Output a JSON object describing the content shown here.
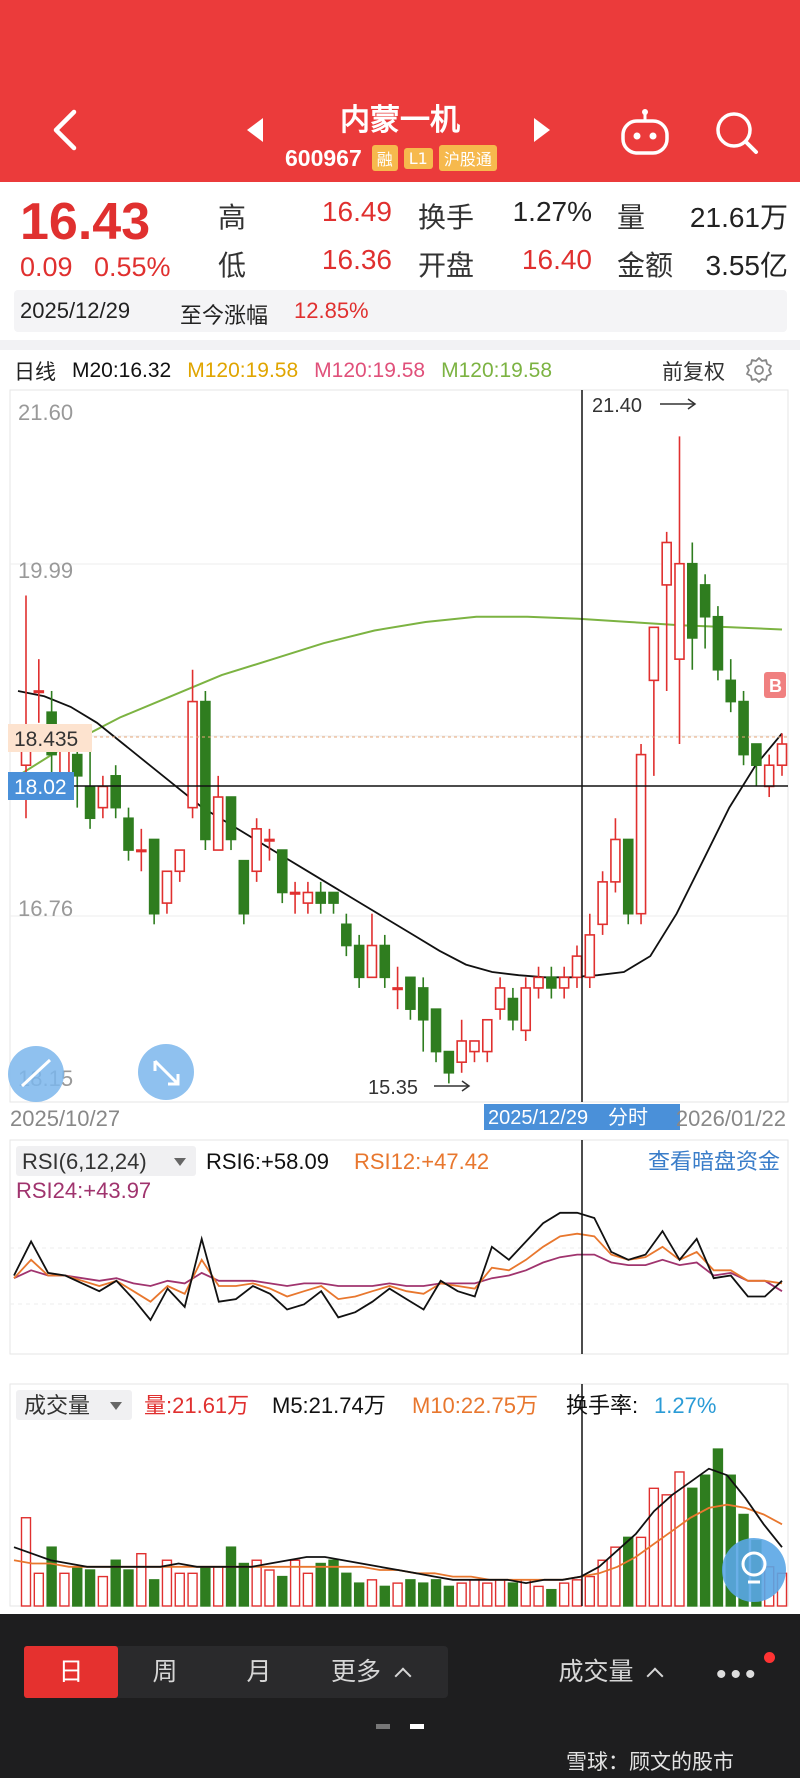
{
  "header": {
    "stock_name": "内蒙一机",
    "stock_code": "600967",
    "tags": [
      "融",
      "L1",
      "沪股通"
    ]
  },
  "quote": {
    "price": "16.43",
    "change": "0.09",
    "change_pct": "0.55%",
    "high_label": "高",
    "high": "16.49",
    "low_label": "低",
    "low": "16.36",
    "turnover_label": "换手",
    "turnover": "1.27%",
    "open_label": "开盘",
    "open": "16.40",
    "volume_label": "量",
    "volume": "21.61万",
    "amount_label": "金额",
    "amount": "3.55亿",
    "date": "2025/12/29",
    "since_label": "至今涨幅",
    "since_value": "12.85%"
  },
  "chart_header": {
    "period": "日线",
    "ma20": "M20:16.32",
    "ma120a": "M120:19.58",
    "ma120b": "M120:19.58",
    "ma120c": "M120:19.58",
    "adjust": "前复权"
  },
  "colors": {
    "up": "#e0302f",
    "down": "#2f7d1f",
    "ma20": "#111111",
    "ma120": "#7cb342",
    "ma120a_text": "#e0a500",
    "ma120b_text": "#e0507a",
    "ma120c_text": "#7cb342",
    "rsi6": "#111111",
    "rsi12": "#e8772e",
    "rsi24": "#a0346e",
    "vol_m5": "#111111",
    "vol_m10": "#e8772e"
  },
  "price_chart": {
    "y_labels": [
      "21.60",
      "19.99",
      "16.76",
      "18.15"
    ],
    "price_tag": "18.435",
    "cross_price_tag": "18.02",
    "high_marker": "21.40",
    "low_marker": "15.35",
    "start_date": "2025/10/27",
    "cross_date": "2025/12/29",
    "cross_date_suffix": "分时",
    "end_date": "2026/01/22",
    "b_marker": "B"
  },
  "rsi_panel": {
    "selector": "RSI(6,12,24)",
    "rsi6": "RSI6:+58.09",
    "rsi12": "RSI12:+47.42",
    "rsi24": "RSI24:+43.97",
    "link": "查看暗盘资金"
  },
  "volume_panel": {
    "selector": "成交量",
    "vol": "量:21.61万",
    "m5": "M5:21.74万",
    "m10": "M10:22.75万",
    "turnover_label": "换手率:",
    "turnover_value": "1.27%"
  },
  "bottom_bar": {
    "tab_day": "日",
    "tab_week": "周",
    "tab_month": "月",
    "tab_more": "更多",
    "indicator": "成交量",
    "more_dots": "•••",
    "watermark": "雪球：顾文的股市"
  },
  "chart_data": {
    "type": "candlestick",
    "x_start": "2025/10/27",
    "x_end": "2026/01/22",
    "ylim": [
      15.2,
      21.8
    ],
    "candles": [
      [
        18.3,
        19.9,
        18.5,
        17.8
      ],
      [
        19.0,
        19.3,
        19.0,
        18.7
      ],
      [
        18.8,
        19.0,
        18.4,
        18.2
      ],
      [
        18.2,
        18.6,
        18.5,
        18.1
      ],
      [
        18.4,
        18.6,
        18.2,
        17.9
      ],
      [
        18.1,
        18.5,
        17.8,
        17.7
      ],
      [
        17.9,
        18.2,
        18.1,
        17.8
      ],
      [
        18.2,
        18.3,
        17.9,
        17.8
      ],
      [
        17.8,
        17.9,
        17.5,
        17.4
      ],
      [
        17.5,
        17.7,
        17.5,
        17.3
      ],
      [
        17.6,
        17.6,
        16.9,
        16.8
      ],
      [
        17.0,
        17.3,
        17.3,
        16.9
      ],
      [
        17.3,
        17.5,
        17.5,
        17.2
      ],
      [
        17.9,
        19.2,
        18.9,
        17.8
      ],
      [
        18.9,
        19.0,
        17.6,
        17.5
      ],
      [
        17.5,
        18.2,
        18.0,
        17.5
      ],
      [
        18.0,
        18.0,
        17.6,
        17.5
      ],
      [
        17.4,
        17.4,
        16.9,
        16.8
      ],
      [
        17.3,
        17.8,
        17.7,
        17.2
      ],
      [
        17.6,
        17.7,
        17.6,
        17.4
      ],
      [
        17.5,
        17.5,
        17.1,
        17.0
      ],
      [
        17.1,
        17.2,
        17.1,
        16.9
      ],
      [
        17.0,
        17.2,
        17.1,
        16.9
      ],
      [
        17.1,
        17.2,
        17.0,
        16.9
      ],
      [
        17.1,
        17.1,
        17.0,
        16.9
      ],
      [
        16.8,
        16.9,
        16.6,
        16.5
      ],
      [
        16.6,
        16.7,
        16.3,
        16.2
      ],
      [
        16.3,
        16.9,
        16.6,
        16.3
      ],
      [
        16.6,
        16.7,
        16.3,
        16.2
      ],
      [
        16.2,
        16.4,
        16.2,
        16.0
      ],
      [
        16.3,
        16.3,
        16.0,
        15.9
      ],
      [
        16.2,
        16.3,
        15.9,
        15.6
      ],
      [
        16.0,
        16.0,
        15.6,
        15.5
      ],
      [
        15.6,
        15.6,
        15.4,
        15.3
      ],
      [
        15.5,
        15.9,
        15.7,
        15.4
      ],
      [
        15.6,
        15.7,
        15.7,
        15.5
      ],
      [
        15.6,
        15.9,
        15.9,
        15.5
      ],
      [
        16.0,
        16.3,
        16.2,
        15.9
      ],
      [
        16.1,
        16.2,
        15.9,
        15.8
      ],
      [
        15.8,
        16.3,
        16.2,
        15.7
      ],
      [
        16.2,
        16.4,
        16.3,
        16.1
      ],
      [
        16.3,
        16.4,
        16.2,
        16.1
      ],
      [
        16.2,
        16.4,
        16.3,
        16.1
      ],
      [
        16.3,
        16.6,
        16.5,
        16.2
      ],
      [
        16.3,
        16.9,
        16.7,
        16.2
      ],
      [
        16.8,
        17.3,
        17.2,
        16.7
      ],
      [
        17.2,
        17.8,
        17.6,
        17.1
      ],
      [
        17.6,
        17.6,
        16.9,
        16.8
      ],
      [
        16.9,
        18.5,
        18.4,
        16.8
      ],
      [
        19.1,
        19.6,
        19.6,
        18.2
      ],
      [
        20.0,
        20.5,
        20.4,
        19.0
      ],
      [
        19.3,
        21.4,
        20.2,
        18.5
      ],
      [
        20.2,
        20.4,
        19.5,
        19.2
      ],
      [
        20.0,
        20.1,
        19.7,
        19.4
      ],
      [
        19.7,
        19.8,
        19.2,
        19.1
      ],
      [
        19.1,
        19.3,
        18.9,
        18.8
      ],
      [
        18.9,
        19.0,
        18.4,
        18.3
      ],
      [
        18.5,
        18.5,
        18.3,
        18.1
      ],
      [
        18.1,
        18.4,
        18.3,
        18.0
      ],
      [
        18.3,
        18.6,
        18.5,
        18.2
      ]
    ],
    "ma20": [
      19.0,
      18.95,
      18.85,
      18.7,
      18.5,
      18.3,
      18.1,
      17.9,
      17.75,
      17.6,
      17.45,
      17.3,
      17.15,
      17.0,
      16.85,
      16.7,
      16.55,
      16.42,
      16.35,
      16.32,
      16.3,
      16.3,
      16.32,
      16.35,
      16.5,
      16.9,
      17.4,
      17.9,
      18.3,
      18.6
    ],
    "ma120": [
      18.2,
      18.5,
      18.75,
      18.95,
      19.15,
      19.3,
      19.45,
      19.57,
      19.65,
      19.7,
      19.7,
      19.68,
      19.65,
      19.62,
      19.6,
      19.58
    ],
    "rsi6": [
      50,
      63,
      51,
      50,
      47,
      44,
      48,
      41,
      33,
      45,
      38,
      64,
      40,
      41,
      46,
      43,
      37,
      39,
      44,
      34,
      36,
      40,
      45,
      41,
      37,
      48,
      44,
      42,
      61,
      56,
      63,
      70,
      74,
      74,
      72,
      59,
      56,
      58,
      67,
      56,
      64,
      49,
      50,
      42,
      42,
      48
    ],
    "rsi12": [
      49,
      56,
      50,
      50,
      48,
      46,
      48,
      44,
      40,
      46,
      43,
      56,
      46,
      46,
      47,
      45,
      42,
      44,
      46,
      41,
      42,
      44,
      46,
      44,
      43,
      47,
      46,
      45,
      53,
      52,
      56,
      61,
      65,
      66,
      65,
      58,
      56,
      57,
      61,
      56,
      59,
      52,
      52,
      48,
      48,
      47
    ],
    "rsi24": [
      49,
      52,
      50,
      50,
      49,
      48,
      49,
      47,
      46,
      48,
      47,
      51,
      48,
      48,
      48,
      47,
      46,
      47,
      47,
      46,
      46,
      46,
      47,
      46,
      46,
      47,
      47,
      47,
      49,
      50,
      52,
      55,
      57,
      58,
      58,
      55,
      54,
      54,
      56,
      54,
      55,
      50,
      51,
      48,
      48,
      44
    ],
    "volume": [
      27,
      10,
      18,
      10,
      12,
      11,
      9,
      14,
      11,
      16,
      8,
      14,
      10,
      10,
      12,
      12,
      18,
      13,
      14,
      11,
      9,
      14,
      10,
      13,
      14,
      10,
      7,
      8,
      6,
      7,
      8,
      7,
      8,
      6,
      7,
      8,
      7,
      8,
      7,
      8,
      6,
      5,
      7,
      8,
      9,
      14,
      18,
      21,
      21,
      36,
      34,
      41,
      36,
      40,
      48,
      40,
      28,
      20,
      12,
      10
    ],
    "vol_m5": [
      18,
      16,
      14,
      13,
      12,
      12,
      12,
      12,
      12,
      13,
      12,
      12,
      12,
      12,
      13,
      14,
      15,
      15,
      14,
      13,
      12,
      11,
      10,
      9,
      8,
      8,
      8,
      8,
      7,
      8,
      8,
      9,
      12,
      17,
      22,
      29,
      34,
      38,
      42,
      40,
      33,
      25,
      18
    ],
    "vol_m10": [
      14,
      13,
      13,
      12,
      12,
      12,
      12,
      12,
      12,
      12,
      12,
      12,
      12,
      12,
      12,
      12,
      12,
      12,
      12,
      12,
      11,
      11,
      10,
      10,
      9,
      9,
      8,
      8,
      8,
      8,
      8,
      9,
      10,
      12,
      15,
      19,
      23,
      27,
      30,
      31,
      30,
      28,
      25
    ]
  }
}
